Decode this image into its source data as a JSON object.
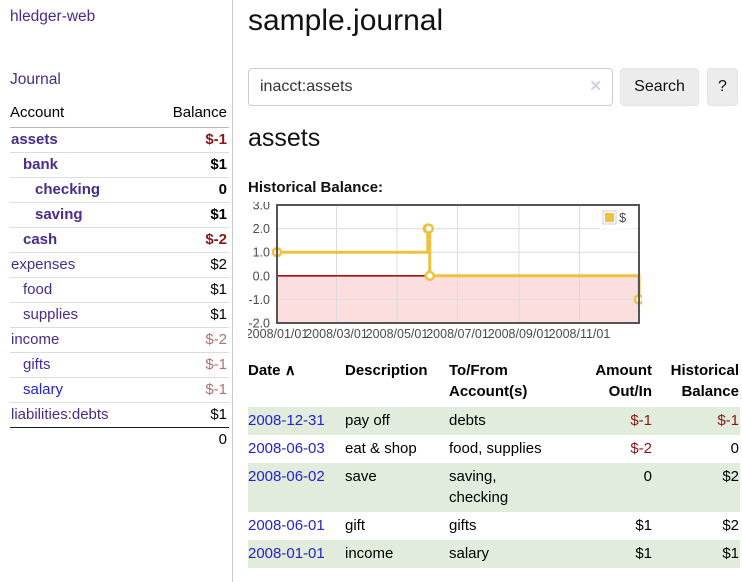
{
  "brand": "hledger-web",
  "nav": {
    "journal": "Journal"
  },
  "page_title": "sample.journal",
  "search": {
    "value": "inacct:assets",
    "clear_icon": "✕",
    "search_button": "Search",
    "help_button": "?"
  },
  "account_heading": "assets",
  "chart_heading": "Historical Balance:",
  "sidebar": {
    "account_header": "Account",
    "balance_header": "Balance",
    "rows": [
      {
        "name": "assets",
        "balance": "$-1",
        "indent": 0,
        "bold": true,
        "balance_style": "neg-strong",
        "link_style": "purple"
      },
      {
        "name": "bank",
        "balance": "$1",
        "indent": 1,
        "bold": true,
        "balance_style": "pos",
        "link_style": "purple"
      },
      {
        "name": "checking",
        "balance": "0",
        "indent": 2,
        "bold": true,
        "balance_style": "pos",
        "link_style": "purple"
      },
      {
        "name": "saving",
        "balance": "$1",
        "indent": 2,
        "bold": true,
        "balance_style": "pos",
        "link_style": "purple"
      },
      {
        "name": "cash",
        "balance": "$-2",
        "indent": 1,
        "bold": true,
        "balance_style": "neg-strong",
        "link_style": "purple"
      },
      {
        "name": "expenses",
        "balance": "$2",
        "indent": 0,
        "bold": false,
        "balance_style": "pos",
        "link_style": "purple"
      },
      {
        "name": "food",
        "balance": "$1",
        "indent": 1,
        "bold": false,
        "balance_style": "pos",
        "link_style": "purple"
      },
      {
        "name": "supplies",
        "balance": "$1",
        "indent": 1,
        "bold": false,
        "balance_style": "pos",
        "link_style": "purple"
      },
      {
        "name": "income",
        "balance": "$-2",
        "indent": 0,
        "bold": false,
        "balance_style": "neg-soft",
        "link_style": "purple"
      },
      {
        "name": "gifts",
        "balance": "$-1",
        "indent": 1,
        "bold": false,
        "balance_style": "neg-soft",
        "link_style": "purple"
      },
      {
        "name": "salary",
        "balance": "$-1",
        "indent": 1,
        "bold": false,
        "balance_style": "neg-soft",
        "link_style": "blue"
      },
      {
        "name": "liabilities:debts",
        "balance": "$1",
        "indent": 0,
        "bold": false,
        "balance_style": "pos",
        "link_style": "purple"
      }
    ],
    "total": "0"
  },
  "chart_data": {
    "type": "line",
    "title": "Historical Balance",
    "series": [
      {
        "name": "$",
        "color": "#edc240",
        "steps": true,
        "points": [
          {
            "date": "2008-01-01",
            "value": 1
          },
          {
            "date": "2008-06-01",
            "value": 2
          },
          {
            "date": "2008-06-02",
            "value": 2
          },
          {
            "date": "2008-06-03",
            "value": 0
          },
          {
            "date": "2008-12-31",
            "value": -1
          }
        ]
      }
    ],
    "xlim": [
      "2008-01-01",
      "2008-12-31"
    ],
    "ylim": [
      -2,
      3
    ],
    "x_ticks": [
      {
        "date": "2008-01-01",
        "label": "2008/01/01"
      },
      {
        "date": "2008-03-01",
        "label": "2008/03/01"
      },
      {
        "date": "2008-05-01",
        "label": "2008/05/01"
      },
      {
        "date": "2008-07-01",
        "label": "2008/07/01"
      },
      {
        "date": "2008-09-01",
        "label": "2008/09/01"
      },
      {
        "date": "2008-11-01",
        "label": "2008/11/01"
      }
    ],
    "y_ticks": [
      "-2.0",
      "-1.0",
      "0.0",
      "1.0",
      "2.0",
      "3.0"
    ],
    "grid": true,
    "legend": {
      "label": "$",
      "position": "top-right"
    },
    "negative_region_color": "#fcdede",
    "zero_line_color": "#a31212",
    "grid_color": "#dcdcdc",
    "border_color": "#545454",
    "tick_text_color": "#4a4a4a"
  },
  "transactions": {
    "headers": {
      "date": "Date",
      "sort_icon": "∧",
      "description": "Description",
      "accounts": "To/From\nAccount(s)",
      "amount": "Amount\nOut/In",
      "balance": "Historical\nBalance"
    },
    "rows": [
      {
        "date": "2008-12-31",
        "description": "pay off",
        "accounts": "debts",
        "amount": "$-1",
        "balance": "$-1",
        "amount_neg": true,
        "balance_neg": true,
        "highlight": true
      },
      {
        "date": "2008-06-03",
        "description": "eat & shop",
        "accounts": "food, supplies",
        "amount": "$-2",
        "balance": "0",
        "amount_neg": true,
        "balance_neg": false,
        "highlight": false
      },
      {
        "date": "2008-06-02",
        "description": "save",
        "accounts": "saving,\nchecking",
        "amount": "0",
        "balance": "$2",
        "amount_neg": false,
        "balance_neg": false,
        "highlight": true
      },
      {
        "date": "2008-06-01",
        "description": "gift",
        "accounts": "gifts",
        "amount": "$1",
        "balance": "$2",
        "amount_neg": false,
        "balance_neg": false,
        "highlight": false
      },
      {
        "date": "2008-01-01",
        "description": "income",
        "accounts": "salary",
        "amount": "$1",
        "balance": "$1",
        "amount_neg": false,
        "balance_neg": false,
        "highlight": true
      }
    ]
  },
  "colors": {
    "purple_link": "#4a2b8c",
    "blue_link": "#2323cc",
    "negative_strong": "#8c1616",
    "negative_soft": "#b07070",
    "row_highlight": "#e1ecdc",
    "accent_gold": "#edc240"
  }
}
